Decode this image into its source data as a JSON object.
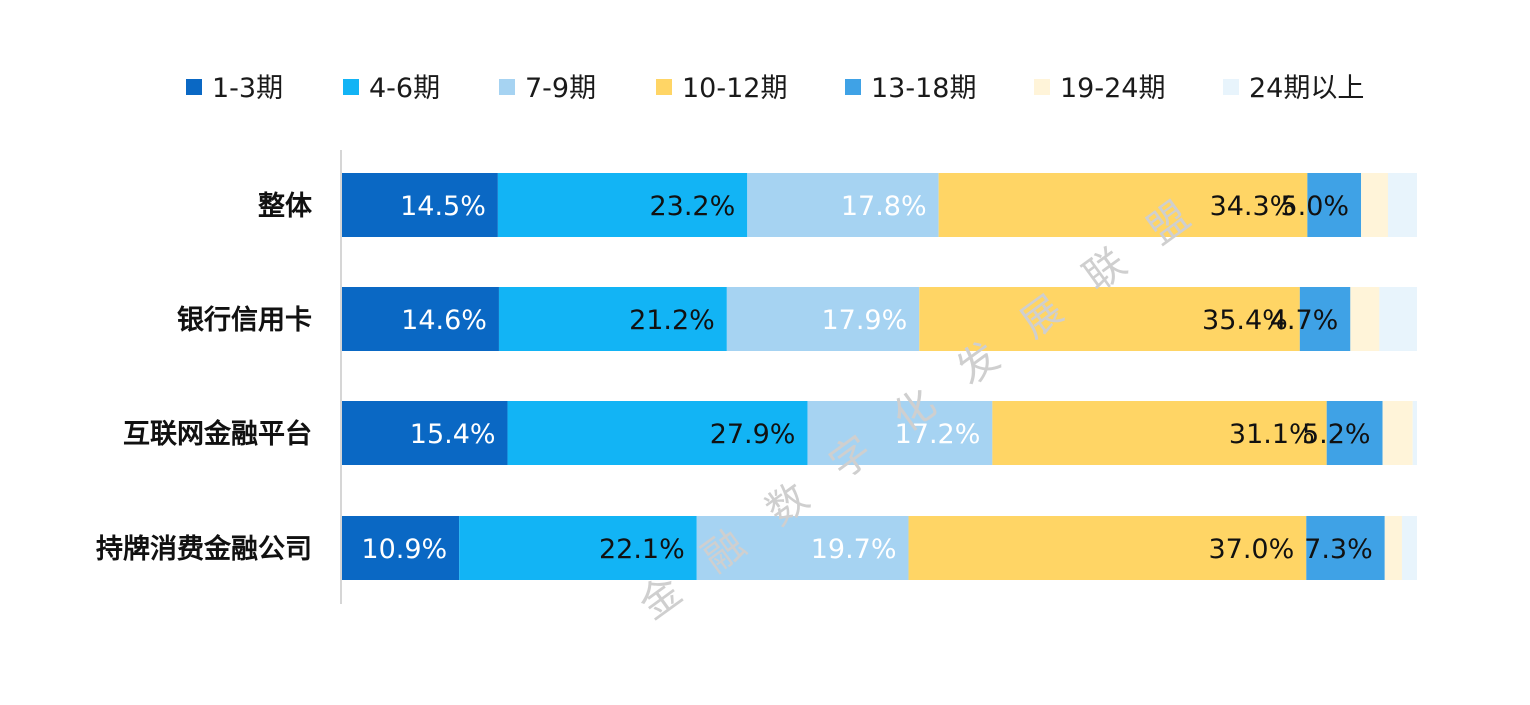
{
  "chart_data": {
    "type": "bar",
    "orientation": "horizontal",
    "stacked": true,
    "normalized": true,
    "title": "",
    "xlabel": "",
    "ylabel": "",
    "xlim": [
      0,
      100
    ],
    "grid": false,
    "legend_position": "top",
    "categories": [
      "整体",
      "银行信用卡",
      "互联网金融平台",
      "持牌消费金融公司"
    ],
    "series": [
      {
        "name": "1-3期",
        "color": "#0A68C4",
        "label_color": "#ffffff",
        "values": [
          14.5,
          14.6,
          15.4,
          10.9
        ],
        "labels": [
          "14.5%",
          "14.6%",
          "15.4%",
          "10.9%"
        ]
      },
      {
        "name": "4-6期",
        "color": "#12B4F5",
        "label_color": "#111111",
        "values": [
          23.2,
          21.2,
          27.9,
          22.1
        ],
        "labels": [
          "23.2%",
          "21.2%",
          "27.9%",
          "22.1%"
        ]
      },
      {
        "name": "7-9期",
        "color": "#A6D3F2",
        "label_color": "#ffffff",
        "values": [
          17.8,
          17.9,
          17.2,
          19.7
        ],
        "labels": [
          "17.8%",
          "17.9%",
          "17.2%",
          "19.7%"
        ]
      },
      {
        "name": "10-12期",
        "color": "#FFD565",
        "label_color": "#111111",
        "values": [
          34.3,
          35.4,
          31.1,
          37.0
        ],
        "labels": [
          "34.3%",
          "35.4%",
          "31.1%",
          "37.0%"
        ]
      },
      {
        "name": "13-18期",
        "color": "#3FA2E6",
        "label_color": "#111111",
        "values": [
          5.0,
          4.7,
          5.2,
          7.3
        ],
        "labels": [
          "5.0%",
          "4.7%",
          "5.2%",
          "7.3%"
        ]
      },
      {
        "name": "19-24期",
        "color": "#FFF4D9",
        "label_color": "#111111",
        "values": [
          2.5,
          2.7,
          2.8,
          1.6
        ],
        "labels": [
          "",
          "",
          "",
          ""
        ]
      },
      {
        "name": "24期以上",
        "color": "#E8F4FC",
        "label_color": "#111111",
        "values": [
          2.7,
          3.5,
          0.4,
          1.4
        ],
        "labels": [
          "",
          "",
          "",
          ""
        ]
      }
    ]
  },
  "watermark": [
    "金",
    "融",
    "数",
    "字",
    "化",
    "发",
    "展",
    "联",
    "盟"
  ]
}
